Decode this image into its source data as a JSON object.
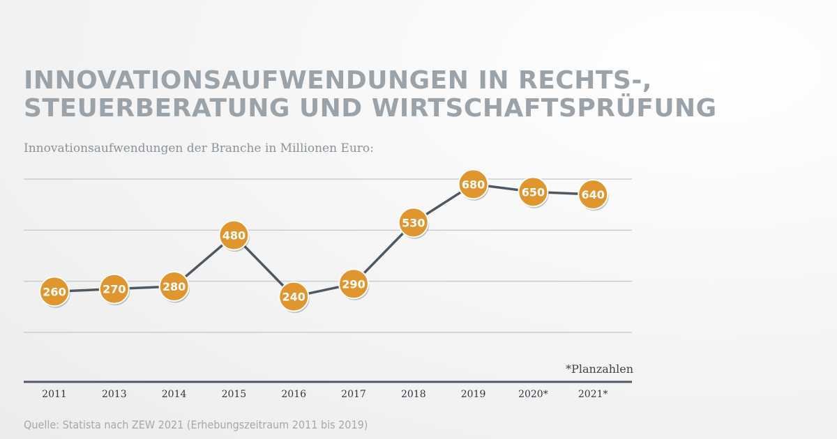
{
  "title_lines": [
    "INNOVATIONSAUFWENDUNGEN IN RECHTS-,",
    "STEUERBERATUNG UND WIRTSCHAFTSPRÜFUNG"
  ],
  "subtitle": "Innovationsaufwendungen der Branche in Millionen Euro:",
  "note": "*Planzahlen",
  "source": "Quelle: Statista nach ZEW 2021 (Erhebungszeitraum 2011 bis 2019)",
  "colors": {
    "line": "#4d5862",
    "marker": "#e0962f",
    "marker_border": "#ffffff",
    "grid": "#c9cdd1",
    "axis": "#4d5862"
  },
  "chart_data": {
    "type": "line",
    "categories": [
      "2011",
      "2013",
      "2014",
      "2015",
      "2016",
      "2017",
      "2018",
      "2019",
      "2020*",
      "2021*"
    ],
    "values": [
      260,
      270,
      280,
      480,
      240,
      290,
      530,
      680,
      650,
      640
    ],
    "ylim": [
      100,
      700
    ],
    "grid": true,
    "data_labels": true
  }
}
